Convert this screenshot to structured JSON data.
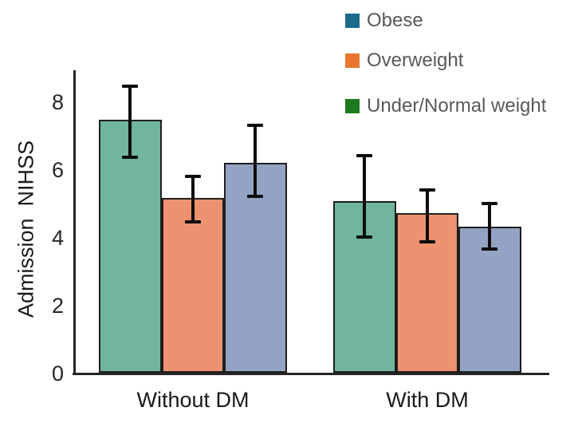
{
  "figure": {
    "background": "#ffffff",
    "axis_color": "#262626",
    "bar_border_color": "#1f1f1f",
    "error_bar_color": "#0d0d0d",
    "tick_label_color": "#262626",
    "legend_text_color": "#595959"
  },
  "chart_data": {
    "type": "bar",
    "title": "",
    "xlabel": "",
    "ylabel": "Admission  NIHSS",
    "categories": [
      "Without DM",
      "With DM"
    ],
    "yticks": [
      0,
      2,
      4,
      6,
      8
    ],
    "ylim": [
      0,
      9
    ],
    "grid": false,
    "legend": {
      "position": "top-right",
      "items": [
        {
          "label": "Obese",
          "color": "#1d6a8d"
        },
        {
          "label": "Overweight",
          "color": "#e8762c"
        },
        {
          "label": "Under/Normal weight",
          "color": "#1e7a1e"
        }
      ]
    },
    "series": [
      {
        "name": "Under/Normal weight",
        "bar_color": "#6fb69c",
        "values": [
          7.45,
          5.05
        ],
        "err_high": [
          8.45,
          6.4
        ],
        "err_low": [
          6.35,
          4.0
        ]
      },
      {
        "name": "Overweight",
        "bar_color": "#ec9270",
        "values": [
          5.15,
          4.7
        ],
        "err_high": [
          5.8,
          5.4
        ],
        "err_low": [
          4.45,
          3.85
        ]
      },
      {
        "name": "Obese",
        "bar_color": "#94a3c4",
        "values": [
          6.2,
          4.3
        ],
        "err_high": [
          7.3,
          5.0
        ],
        "err_low": [
          5.2,
          3.65
        ]
      }
    ]
  }
}
